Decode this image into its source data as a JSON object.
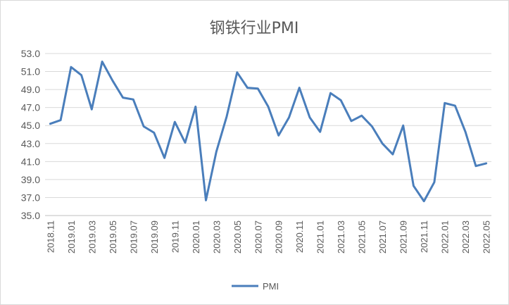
{
  "chart_data": {
    "type": "line",
    "title": "钢铁行业PMI",
    "xlabel": "",
    "ylabel": "",
    "ylim": [
      35.0,
      53.0
    ],
    "yticks": [
      "53.0",
      "51.0",
      "49.0",
      "47.0",
      "45.0",
      "43.0",
      "41.0",
      "39.0",
      "37.0",
      "35.0"
    ],
    "categories": [
      "2018.11",
      "2018.12",
      "2019.01",
      "2019.02",
      "2019.03",
      "2019.04",
      "2019.05",
      "2019.06",
      "2019.07",
      "2019.08",
      "2019.09",
      "2019.10",
      "2019.11",
      "2019.12",
      "2020.01",
      "2020.02",
      "2020.03",
      "2020.04",
      "2020.05",
      "2020.06",
      "2020.07",
      "2020.08",
      "2020.09",
      "2020.10",
      "2020.11",
      "2020.12",
      "2021.01",
      "2021.02",
      "2021.03",
      "2021.04",
      "2021.05",
      "2021.06",
      "2021.07",
      "2021.08",
      "2021.09",
      "2021.10",
      "2021.11",
      "2021.12",
      "2022.01",
      "2022.02",
      "2022.03",
      "2022.04",
      "2022.05"
    ],
    "xtick_labels": [
      "2018.11",
      "2019.01",
      "2019.03",
      "2019.05",
      "2019.07",
      "2019.09",
      "2019.11",
      "2020.01",
      "2020.03",
      "2020.05",
      "2020.07",
      "2020.09",
      "2020.11",
      "2021.01",
      "2021.03",
      "2021.05",
      "2021.07",
      "2021.09",
      "2021.11",
      "2022.01",
      "2022.03",
      "2022.05"
    ],
    "series": [
      {
        "name": "PMI",
        "color": "#4a7ebb",
        "values": [
          45.2,
          45.6,
          51.5,
          50.6,
          46.8,
          52.1,
          50.0,
          48.1,
          47.9,
          44.9,
          44.2,
          41.4,
          45.4,
          43.1,
          47.1,
          36.7,
          42.1,
          46.0,
          50.9,
          49.2,
          49.1,
          47.1,
          43.9,
          45.9,
          49.2,
          45.9,
          44.3,
          48.6,
          47.8,
          45.5,
          46.1,
          44.9,
          43.0,
          41.8,
          45.0,
          38.3,
          36.6,
          38.7,
          47.5,
          47.2,
          44.3,
          40.5,
          40.8
        ]
      }
    ],
    "grid": true,
    "legend_position": "bottom-center"
  }
}
